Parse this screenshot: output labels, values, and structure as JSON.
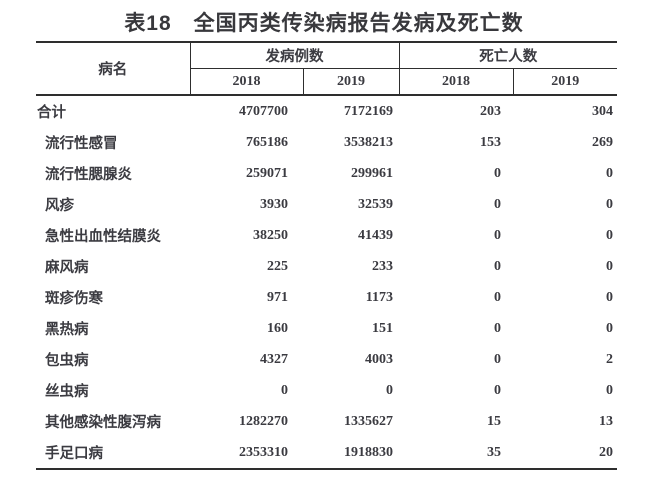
{
  "title": "表18　全国丙类传染病报告发病及死亡数",
  "table": {
    "col_disease": "病名",
    "group_cases": "发病例数",
    "group_deaths": "死亡人数",
    "year_headers": [
      "2018",
      "2019",
      "2018",
      "2019"
    ],
    "rows": [
      {
        "name": "合计",
        "is_total": true,
        "cases_2018": "4707700",
        "cases_2019": "7172169",
        "deaths_2018": "203",
        "deaths_2019": "304"
      },
      {
        "name": "流行性感冒",
        "is_total": false,
        "cases_2018": "765186",
        "cases_2019": "3538213",
        "deaths_2018": "153",
        "deaths_2019": "269"
      },
      {
        "name": "流行性腮腺炎",
        "is_total": false,
        "cases_2018": "259071",
        "cases_2019": "299961",
        "deaths_2018": "0",
        "deaths_2019": "0"
      },
      {
        "name": "风疹",
        "is_total": false,
        "cases_2018": "3930",
        "cases_2019": "32539",
        "deaths_2018": "0",
        "deaths_2019": "0"
      },
      {
        "name": "急性出血性结膜炎",
        "is_total": false,
        "cases_2018": "38250",
        "cases_2019": "41439",
        "deaths_2018": "0",
        "deaths_2019": "0"
      },
      {
        "name": "麻风病",
        "is_total": false,
        "cases_2018": "225",
        "cases_2019": "233",
        "deaths_2018": "0",
        "deaths_2019": "0"
      },
      {
        "name": "斑疹伤寒",
        "is_total": false,
        "cases_2018": "971",
        "cases_2019": "1173",
        "deaths_2018": "0",
        "deaths_2019": "0"
      },
      {
        "name": "黑热病",
        "is_total": false,
        "cases_2018": "160",
        "cases_2019": "151",
        "deaths_2018": "0",
        "deaths_2019": "0"
      },
      {
        "name": "包虫病",
        "is_total": false,
        "cases_2018": "4327",
        "cases_2019": "4003",
        "deaths_2018": "0",
        "deaths_2019": "2"
      },
      {
        "name": "丝虫病",
        "is_total": false,
        "cases_2018": "0",
        "cases_2019": "0",
        "deaths_2018": "0",
        "deaths_2019": "0"
      },
      {
        "name": "其他感染性腹泻病",
        "is_total": false,
        "cases_2018": "1282270",
        "cases_2019": "1335627",
        "deaths_2018": "15",
        "deaths_2019": "13"
      },
      {
        "name": "手足口病",
        "is_total": false,
        "cases_2018": "2353310",
        "cases_2019": "1918830",
        "deaths_2018": "35",
        "deaths_2019": "20"
      }
    ]
  },
  "colors": {
    "text": "#3b3b41",
    "line": "#2e2e2e",
    "background": "#ffffff"
  }
}
